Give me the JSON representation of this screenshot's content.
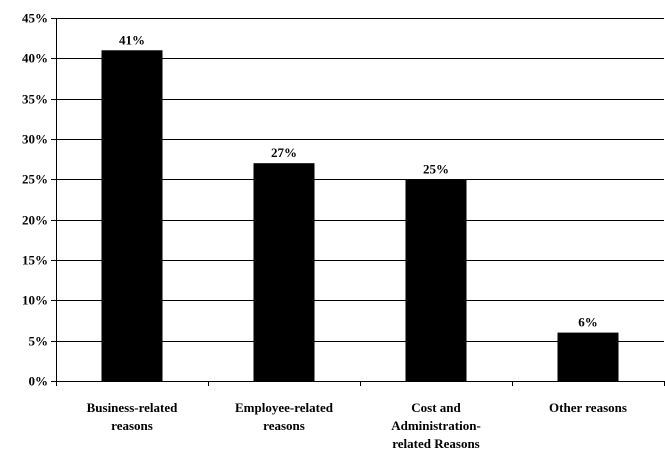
{
  "chart_data": {
    "type": "bar",
    "categories": [
      [
        "Business-related",
        "reasons"
      ],
      [
        "Employee-related",
        "reasons"
      ],
      [
        "Cost and",
        "Administration-",
        "related Reasons"
      ],
      [
        "Other reasons"
      ]
    ],
    "values": [
      41,
      27,
      25,
      6
    ],
    "data_labels": [
      "41%",
      "27%",
      "25%",
      "6%"
    ],
    "ylim": [
      0,
      45
    ],
    "yticks": [
      0,
      5,
      10,
      15,
      20,
      25,
      30,
      35,
      40,
      45
    ],
    "ytick_labels": [
      "0%",
      "5%",
      "10%",
      "15%",
      "20%",
      "25%",
      "30%",
      "35%",
      "40%",
      "45%"
    ],
    "grid": true,
    "bar_color": "#000000",
    "title": "",
    "xlabel": "",
    "ylabel": ""
  }
}
